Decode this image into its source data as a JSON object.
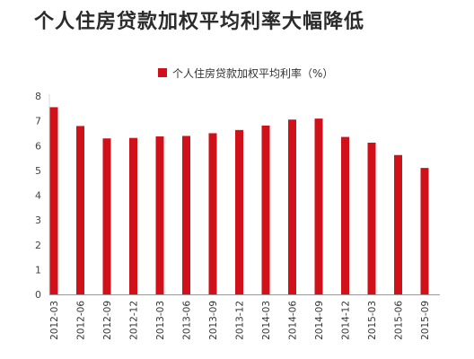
{
  "chart_data": {
    "type": "bar",
    "title": "个人住房贷款加权平均利率大幅降低",
    "legend_position": "top",
    "grid": false,
    "bar_color": "#d0111a",
    "categories": [
      "2012-03",
      "2012-06",
      "2012-09",
      "2012-12",
      "2013-03",
      "2013-06",
      "2013-09",
      "2013-12",
      "2014-03",
      "2014-06",
      "2014-09",
      "2014-12",
      "2015-03",
      "2015-06",
      "2015-09"
    ],
    "series": [
      {
        "name": "个人住房贷款加权平均利率（%）",
        "values": [
          7.55,
          6.79,
          6.29,
          6.31,
          6.37,
          6.39,
          6.5,
          6.63,
          6.81,
          7.05,
          7.09,
          6.35,
          6.12,
          5.62,
          5.1
        ]
      }
    ],
    "y_ticks": [
      "0",
      "1",
      "2",
      "3",
      "4",
      "5",
      "6",
      "7",
      "8"
    ],
    "ylim": [
      0,
      8
    ]
  }
}
